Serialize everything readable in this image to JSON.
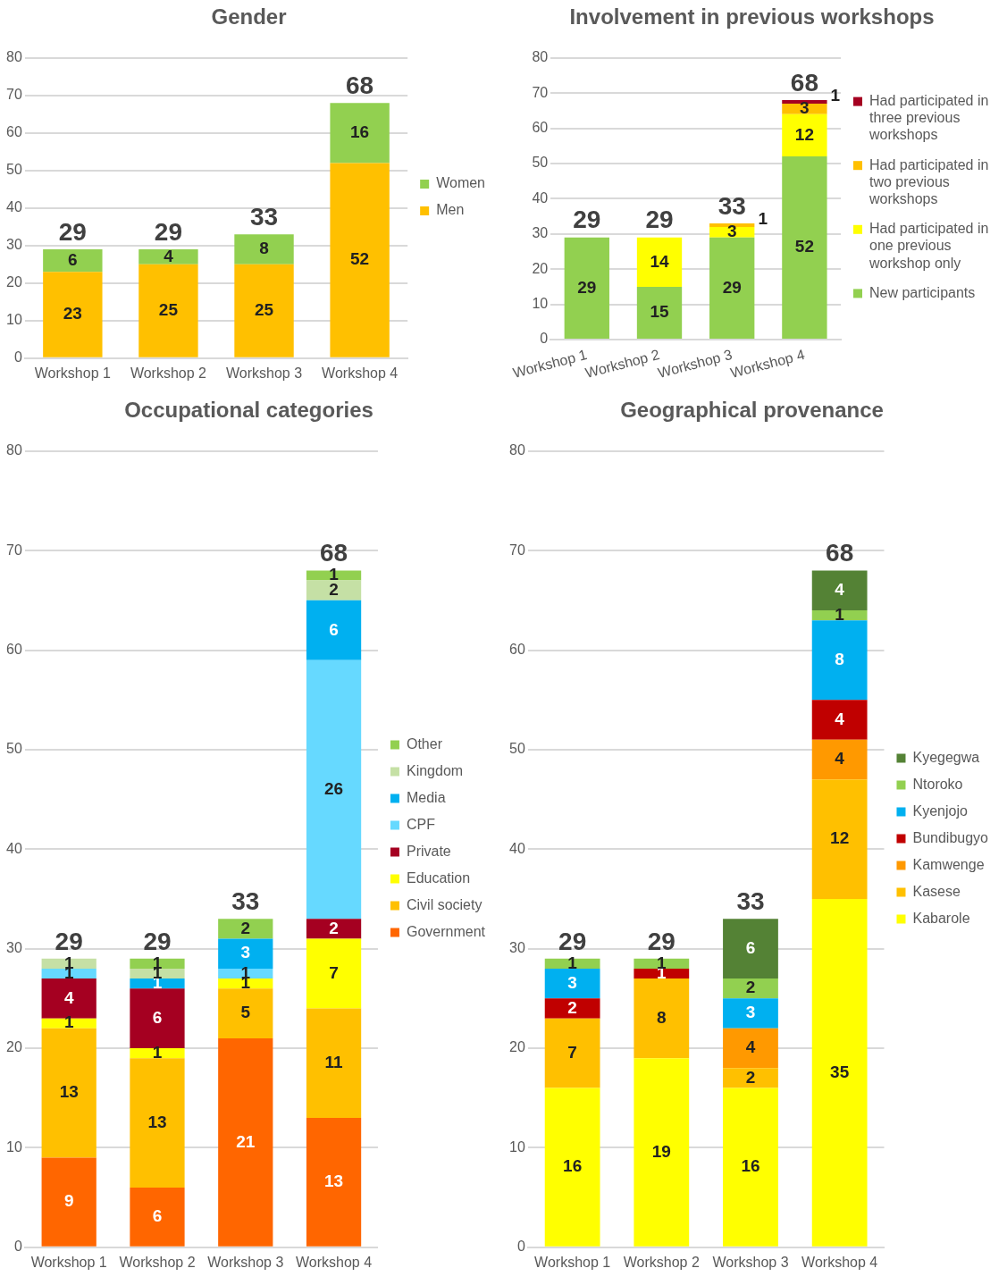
{
  "chart_data": [
    {
      "type": "bar",
      "title": "Gender",
      "categories": [
        "Workshop 1",
        "Workshop 2",
        "Workshop 3",
        "Workshop 4"
      ],
      "stacked": true,
      "ylim": [
        0,
        80
      ],
      "yticks": [
        0,
        10,
        20,
        30,
        40,
        50,
        60,
        70,
        80
      ],
      "grid": "y",
      "legend": "right",
      "data_labels": true,
      "totals": [
        "29",
        "29",
        "33",
        "68"
      ],
      "series": [
        {
          "name": "Men",
          "color": "#ffc000",
          "values": [
            23,
            25,
            25,
            52
          ]
        },
        {
          "name": "Women",
          "color": "#92d050",
          "values": [
            6,
            4,
            8,
            16
          ]
        }
      ]
    },
    {
      "type": "bar",
      "title": "Involvement in previous workshops",
      "categories": [
        "Workshop 1",
        "Workshop 2",
        "Workshop 3",
        "Workshop 4"
      ],
      "stacked": true,
      "ylim": [
        0,
        80
      ],
      "yticks": [
        0,
        10,
        20,
        30,
        40,
        50,
        60,
        70,
        80
      ],
      "grid": "y",
      "legend": "right",
      "data_labels": true,
      "totals": [
        "29",
        "29",
        "33",
        "68"
      ],
      "series": [
        {
          "name": "New participants",
          "color": "#92d050",
          "values": [
            29,
            15,
            29,
            52
          ]
        },
        {
          "name": "Had participated in one previous workshop only",
          "color": "#ffff00",
          "values": [
            null,
            14,
            3,
            12
          ]
        },
        {
          "name": "Had participated in two previous workshops",
          "color": "#ffc000",
          "values": [
            null,
            null,
            1,
            3
          ]
        },
        {
          "name": "Had participated in three previous workshops",
          "color": "#a50021",
          "values": [
            null,
            null,
            null,
            1
          ]
        }
      ]
    },
    {
      "type": "bar",
      "title": "Occupational categories",
      "categories": [
        "Workshop 1",
        "Workshop 2",
        "Workshop 3",
        "Workshop 4"
      ],
      "stacked": true,
      "ylim": [
        0,
        80
      ],
      "yticks": [
        0,
        10,
        20,
        30,
        40,
        50,
        60,
        70,
        80
      ],
      "grid": "y",
      "legend": "right",
      "data_labels": true,
      "totals": [
        "29",
        "29",
        "33",
        "68"
      ],
      "series": [
        {
          "name": "Government",
          "color": "#ff6600",
          "values": [
            9,
            6,
            21,
            13
          ]
        },
        {
          "name": "Civil society",
          "color": "#ffc000",
          "values": [
            13,
            13,
            5,
            11
          ]
        },
        {
          "name": "Education",
          "color": "#ffff00",
          "values": [
            1,
            1,
            1,
            7
          ]
        },
        {
          "name": "Private",
          "color": "#a50021",
          "values": [
            4,
            6,
            null,
            2
          ]
        },
        {
          "name": "CPF",
          "color": "#66d9ff",
          "values": [
            1,
            null,
            1,
            26
          ]
        },
        {
          "name": "Media",
          "color": "#00b0f0",
          "values": [
            null,
            1,
            3,
            6
          ]
        },
        {
          "name": "Kingdom",
          "color": "#c5e0a5",
          "values": [
            1,
            1,
            null,
            2
          ]
        },
        {
          "name": "Other",
          "color": "#92d050",
          "values": [
            null,
            1,
            2,
            1
          ]
        }
      ]
    },
    {
      "type": "bar",
      "title": "Geographical provenance",
      "categories": [
        "Workshop 1",
        "Workshop 2",
        "Workshop 3",
        "Workshop 4"
      ],
      "stacked": true,
      "ylim": [
        0,
        80
      ],
      "yticks": [
        0,
        10,
        20,
        30,
        40,
        50,
        60,
        70,
        80
      ],
      "grid": "y",
      "legend": "right",
      "data_labels": true,
      "totals": [
        "29",
        "29",
        "33",
        "68"
      ],
      "series": [
        {
          "name": "Kabarole",
          "color": "#ffff00",
          "values": [
            16,
            19,
            16,
            35
          ]
        },
        {
          "name": "Kasese",
          "color": "#ffc000",
          "values": [
            7,
            8,
            2,
            12
          ]
        },
        {
          "name": "Kamwenge",
          "color": "#ff9900",
          "values": [
            null,
            null,
            4,
            4
          ]
        },
        {
          "name": "Bundibugyo",
          "color": "#c00000",
          "values": [
            2,
            1,
            null,
            4
          ]
        },
        {
          "name": "Kyenjojo",
          "color": "#00b0f0",
          "values": [
            3,
            null,
            3,
            8
          ]
        },
        {
          "name": "Ntoroko",
          "color": "#92d050",
          "values": [
            1,
            1,
            2,
            1
          ]
        },
        {
          "name": "Kyegegwa",
          "color": "#548235",
          "values": [
            null,
            null,
            6,
            4
          ]
        }
      ]
    }
  ]
}
